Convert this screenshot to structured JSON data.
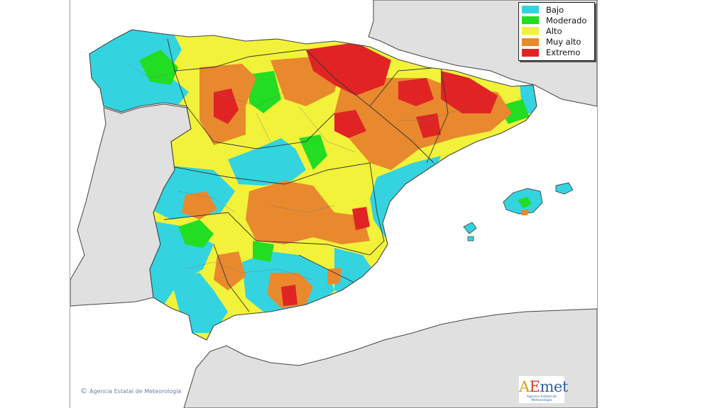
{
  "legend": {
    "items": [
      {
        "label": "Bajo",
        "color": "#33d4e0"
      },
      {
        "label": "Moderado",
        "color": "#22dd22"
      },
      {
        "label": "Alto",
        "color": "#f2f23a"
      },
      {
        "label": "Muy alto",
        "color": "#e8892e"
      },
      {
        "label": "Extremo",
        "color": "#e02424"
      }
    ]
  },
  "colors": {
    "sea": "#ffffff",
    "land_other": "#e0e0e0",
    "coast": "#444444",
    "borders": "#333333"
  },
  "credit": {
    "copyright_symbol": "©",
    "text": "Agencia Estatal de Meteorología"
  },
  "logo": {
    "word_a": "A",
    "word_e": "E",
    "word_rest": "met",
    "subtitle": "Agencia Estatal de Meteorología"
  }
}
